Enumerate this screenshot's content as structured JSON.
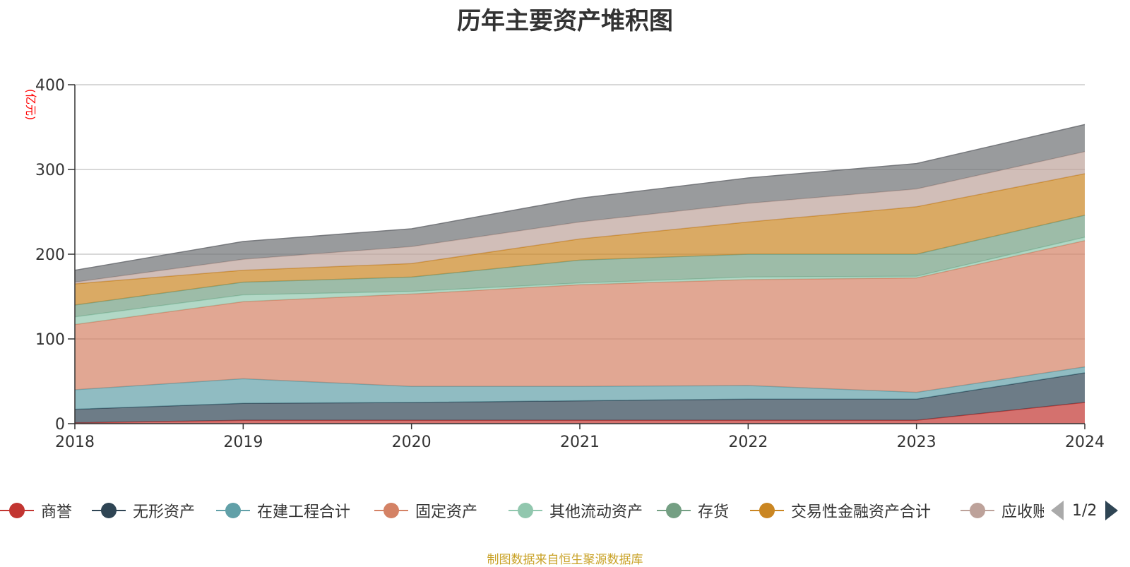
{
  "title": "历年主要资产堆积图",
  "source_note": "制图数据来自恒生聚源数据库",
  "legend_pager": "1/2",
  "chart_data": {
    "type": "area",
    "stacked": true,
    "title": "历年主要资产堆积图",
    "ylabel": "(亿元)",
    "xlabel": "",
    "ylim": [
      0,
      400
    ],
    "yticks": [
      0,
      100,
      200,
      300,
      400
    ],
    "x": [
      "2018",
      "2019",
      "2020",
      "2021",
      "2022",
      "2023",
      "2024"
    ],
    "grid": true,
    "legend_position": "bottom",
    "series": [
      {
        "name": "商誉",
        "color": "#c23531",
        "values": [
          1,
          4,
          4,
          4,
          4,
          4,
          25
        ]
      },
      {
        "name": "无形资产",
        "color": "#2f4554",
        "values": [
          16,
          20,
          21,
          23,
          25,
          25,
          35
        ]
      },
      {
        "name": "在建工程合计",
        "color": "#61a0a8",
        "values": [
          23,
          29,
          19,
          17,
          16,
          8,
          7
        ]
      },
      {
        "name": "固定资产",
        "color": "#d48265",
        "values": [
          77,
          91,
          109,
          120,
          125,
          135,
          149
        ]
      },
      {
        "name": "其他流动资产",
        "color": "#91c7ae",
        "values": [
          9,
          8,
          3,
          2,
          3,
          2,
          4
        ]
      },
      {
        "name": "存货",
        "color": "#749f83",
        "values": [
          14,
          15,
          17,
          27,
          27,
          26,
          26
        ]
      },
      {
        "name": "交易性金融资产合计",
        "color": "#ca8622",
        "values": [
          25,
          14,
          16,
          25,
          38,
          56,
          49
        ]
      },
      {
        "name": "应收账款",
        "color": "#bda29a",
        "values": [
          2,
          13,
          20,
          20,
          22,
          21,
          26
        ]
      },
      {
        "name": "",
        "color": "#6e7074",
        "values": [
          14,
          21,
          21,
          28,
          30,
          30,
          32
        ]
      }
    ]
  }
}
